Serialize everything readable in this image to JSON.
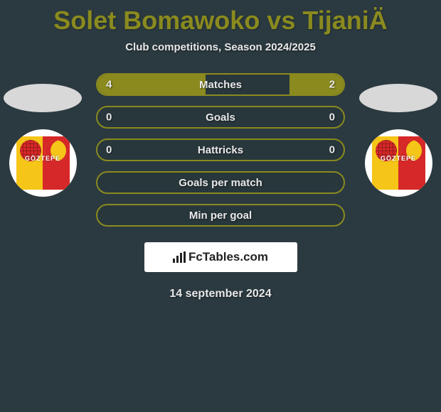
{
  "header": {
    "title": "Solet Bomawoko vs TijaniÄ",
    "subtitle": "Club competitions, Season 2024/2025",
    "title_color": "#8a8a1f"
  },
  "players": {
    "left_club_name": "GÖZTEPE",
    "right_club_name": "GÖZTEPE"
  },
  "stats": {
    "pill_border_color": "#8a8a1f",
    "pill_fill_color": "#8a8a1f",
    "rows": [
      {
        "label": "Matches",
        "left": "4",
        "right": "2",
        "left_fill_pct": 44,
        "right_fill_pct": 22
      },
      {
        "label": "Goals",
        "left": "0",
        "right": "0",
        "left_fill_pct": 0,
        "right_fill_pct": 0
      },
      {
        "label": "Hattricks",
        "left": "0",
        "right": "0",
        "left_fill_pct": 0,
        "right_fill_pct": 0
      },
      {
        "label": "Goals per match",
        "left": "",
        "right": "",
        "left_fill_pct": 0,
        "right_fill_pct": 0
      },
      {
        "label": "Min per goal",
        "left": "",
        "right": "",
        "left_fill_pct": 0,
        "right_fill_pct": 0
      }
    ]
  },
  "brand": {
    "text": "FcTables.com"
  },
  "date": "14 september 2024",
  "colors": {
    "background": "#2b3a40",
    "text_light": "#e8e8e8"
  }
}
